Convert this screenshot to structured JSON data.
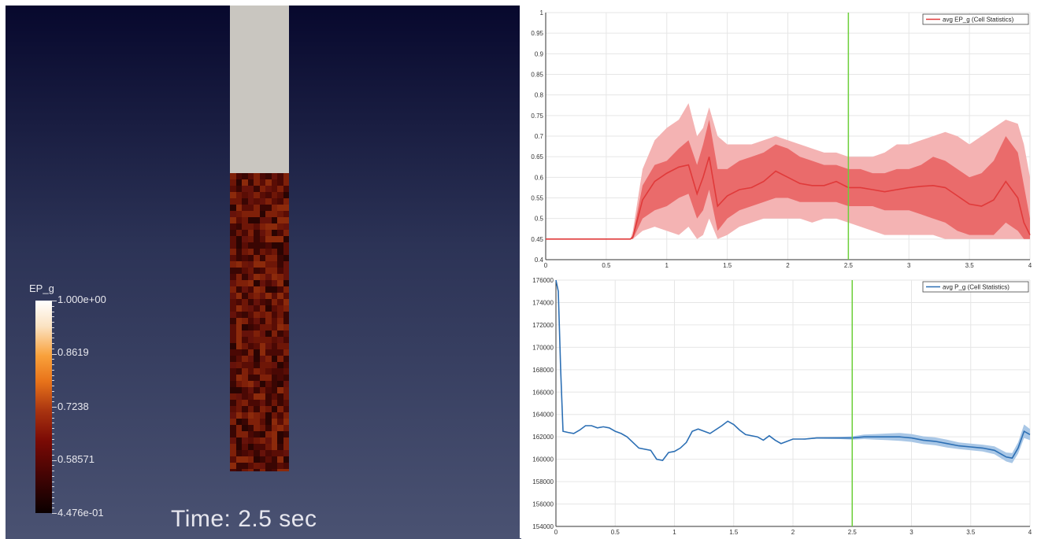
{
  "viewport": {
    "field_name": "EP_g",
    "colorbar_labels": [
      "1.000e+00",
      "0.8619",
      "0.7238",
      "0.58571",
      "4.476e-01"
    ],
    "time_text": "Time: 2.5 sec"
  },
  "chart_data": [
    {
      "type": "line",
      "legend": "avg EP_g (Cell Statistics)",
      "legend_position": "top-right",
      "color": "#e03a3a",
      "band_inner_color": "#ea6b6b",
      "band_outer_color": "#f4b3b3",
      "xlim": [
        0,
        4
      ],
      "ylim": [
        0.4,
        1
      ],
      "xticks": [
        "0",
        "0.5",
        "1",
        "1.5",
        "2",
        "2.5",
        "3",
        "3.5",
        "4"
      ],
      "yticks": [
        "0.4",
        "0.45",
        "0.5",
        "0.55",
        "0.6",
        "0.65",
        "0.7",
        "0.75",
        "0.8",
        "0.85",
        "0.9",
        "0.95",
        "1"
      ],
      "grid": true,
      "cursor_x": 2.5,
      "cursor_color": "#6ccf3a",
      "x": [
        0,
        0.5,
        0.7,
        0.72,
        0.8,
        0.9,
        1.0,
        1.1,
        1.18,
        1.25,
        1.3,
        1.35,
        1.42,
        1.5,
        1.6,
        1.7,
        1.8,
        1.9,
        2.0,
        2.1,
        2.2,
        2.3,
        2.4,
        2.5,
        2.6,
        2.7,
        2.8,
        2.9,
        3.0,
        3.1,
        3.2,
        3.3,
        3.4,
        3.5,
        3.6,
        3.7,
        3.8,
        3.9,
        3.95,
        4.0
      ],
      "mean": [
        0.45,
        0.45,
        0.45,
        0.455,
        0.545,
        0.59,
        0.61,
        0.625,
        0.63,
        0.56,
        0.6,
        0.65,
        0.53,
        0.555,
        0.57,
        0.575,
        0.59,
        0.615,
        0.6,
        0.585,
        0.58,
        0.58,
        0.59,
        0.575,
        0.575,
        0.57,
        0.565,
        0.57,
        0.575,
        0.578,
        0.58,
        0.575,
        0.555,
        0.535,
        0.53,
        0.545,
        0.59,
        0.55,
        0.49,
        0.46
      ],
      "band_inner": [
        [
          0.45,
          0.45
        ],
        [
          0.45,
          0.45
        ],
        [
          0.45,
          0.45
        ],
        [
          0.45,
          0.46
        ],
        [
          0.5,
          0.58
        ],
        [
          0.52,
          0.63
        ],
        [
          0.53,
          0.64
        ],
        [
          0.55,
          0.67
        ],
        [
          0.56,
          0.69
        ],
        [
          0.5,
          0.63
        ],
        [
          0.52,
          0.68
        ],
        [
          0.57,
          0.74
        ],
        [
          0.47,
          0.62
        ],
        [
          0.5,
          0.62
        ],
        [
          0.52,
          0.64
        ],
        [
          0.53,
          0.65
        ],
        [
          0.54,
          0.66
        ],
        [
          0.55,
          0.68
        ],
        [
          0.55,
          0.67
        ],
        [
          0.54,
          0.65
        ],
        [
          0.54,
          0.64
        ],
        [
          0.54,
          0.63
        ],
        [
          0.54,
          0.63
        ],
        [
          0.53,
          0.62
        ],
        [
          0.53,
          0.62
        ],
        [
          0.53,
          0.61
        ],
        [
          0.52,
          0.61
        ],
        [
          0.52,
          0.62
        ],
        [
          0.52,
          0.62
        ],
        [
          0.51,
          0.63
        ],
        [
          0.5,
          0.65
        ],
        [
          0.49,
          0.64
        ],
        [
          0.47,
          0.62
        ],
        [
          0.46,
          0.6
        ],
        [
          0.46,
          0.61
        ],
        [
          0.46,
          0.64
        ],
        [
          0.49,
          0.7
        ],
        [
          0.47,
          0.66
        ],
        [
          0.45,
          0.58
        ],
        [
          0.45,
          0.5
        ]
      ],
      "band_outer": [
        [
          0.45,
          0.45
        ],
        [
          0.45,
          0.45
        ],
        [
          0.45,
          0.45
        ],
        [
          0.45,
          0.47
        ],
        [
          0.47,
          0.62
        ],
        [
          0.48,
          0.69
        ],
        [
          0.47,
          0.72
        ],
        [
          0.46,
          0.74
        ],
        [
          0.48,
          0.78
        ],
        [
          0.45,
          0.7
        ],
        [
          0.46,
          0.72
        ],
        [
          0.5,
          0.77
        ],
        [
          0.45,
          0.7
        ],
        [
          0.46,
          0.68
        ],
        [
          0.48,
          0.68
        ],
        [
          0.49,
          0.68
        ],
        [
          0.5,
          0.69
        ],
        [
          0.5,
          0.7
        ],
        [
          0.5,
          0.69
        ],
        [
          0.5,
          0.68
        ],
        [
          0.49,
          0.67
        ],
        [
          0.5,
          0.66
        ],
        [
          0.5,
          0.66
        ],
        [
          0.49,
          0.65
        ],
        [
          0.48,
          0.65
        ],
        [
          0.47,
          0.65
        ],
        [
          0.46,
          0.66
        ],
        [
          0.46,
          0.68
        ],
        [
          0.46,
          0.68
        ],
        [
          0.46,
          0.69
        ],
        [
          0.46,
          0.7
        ],
        [
          0.45,
          0.71
        ],
        [
          0.45,
          0.7
        ],
        [
          0.45,
          0.68
        ],
        [
          0.45,
          0.7
        ],
        [
          0.45,
          0.72
        ],
        [
          0.45,
          0.74
        ],
        [
          0.45,
          0.73
        ],
        [
          0.45,
          0.68
        ],
        [
          0.45,
          0.6
        ]
      ]
    },
    {
      "type": "line",
      "legend": "avg P_g (Cell Statistics)",
      "legend_position": "top-right",
      "color": "#2c6fb4",
      "band_color": "#a9c7e6",
      "xlim": [
        0,
        4
      ],
      "ylim": [
        154000,
        176000
      ],
      "xticks": [
        "0",
        "0.5",
        "1",
        "1.5",
        "2",
        "2.5",
        "3",
        "3.5",
        "4"
      ],
      "yticks": [
        "154000",
        "156000",
        "158000",
        "160000",
        "162000",
        "164000",
        "166000",
        "168000",
        "170000",
        "172000",
        "174000",
        "176000"
      ],
      "grid": true,
      "cursor_x": 2.5,
      "cursor_color": "#6ccf3a",
      "x": [
        0,
        0.02,
        0.04,
        0.06,
        0.1,
        0.15,
        0.2,
        0.25,
        0.3,
        0.35,
        0.4,
        0.45,
        0.5,
        0.55,
        0.6,
        0.7,
        0.8,
        0.85,
        0.9,
        0.95,
        1.0,
        1.05,
        1.1,
        1.15,
        1.2,
        1.3,
        1.4,
        1.45,
        1.5,
        1.55,
        1.6,
        1.7,
        1.75,
        1.8,
        1.85,
        1.9,
        1.95,
        2.0,
        2.1,
        2.2,
        2.3,
        2.4,
        2.5,
        2.6,
        2.7,
        2.8,
        2.9,
        3.0,
        3.1,
        3.2,
        3.3,
        3.4,
        3.5,
        3.6,
        3.7,
        3.8,
        3.85,
        3.9,
        3.95,
        4.0
      ],
      "mean": [
        176000,
        175000,
        168000,
        162500,
        162400,
        162300,
        162600,
        163000,
        163000,
        162800,
        162900,
        162800,
        162500,
        162300,
        162000,
        161000,
        160800,
        160000,
        159900,
        160600,
        160700,
        161000,
        161500,
        162500,
        162700,
        162300,
        163000,
        163400,
        163100,
        162600,
        162200,
        162000,
        161700,
        162100,
        161700,
        161400,
        161600,
        161800,
        161800,
        161900,
        161900,
        161900,
        161900,
        162000,
        162000,
        162000,
        162000,
        161900,
        161700,
        161600,
        161400,
        161200,
        161100,
        161000,
        160800,
        160200,
        160100,
        161000,
        162500,
        162200
      ],
      "band_width": [
        0,
        0,
        0,
        0,
        0,
        0,
        0,
        0,
        0,
        0,
        0,
        0,
        0,
        0,
        0,
        0,
        0,
        0,
        0,
        0,
        0,
        0,
        0,
        0,
        0,
        0,
        0,
        0,
        0,
        0,
        0,
        0,
        0,
        0,
        0,
        0,
        0,
        0,
        50,
        60,
        80,
        100,
        150,
        200,
        250,
        300,
        350,
        350,
        350,
        350,
        350,
        300,
        300,
        300,
        350,
        400,
        450,
        500,
        600,
        500
      ]
    }
  ]
}
